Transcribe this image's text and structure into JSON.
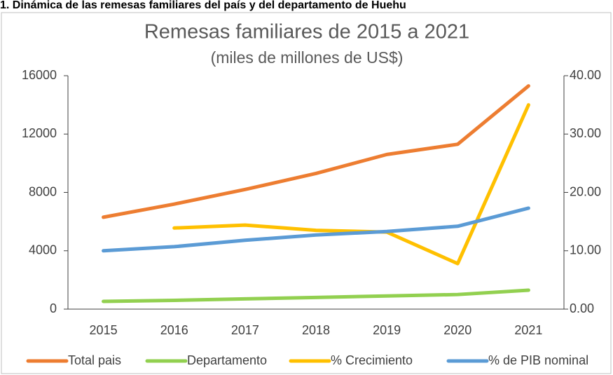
{
  "header": "1. Dinámica de las remesas familiares del país y del departamento de Huehu",
  "chart_data": {
    "type": "line",
    "title": "Remesas familiares de 2015 a 2021",
    "subtitle": "(miles de millones de US$)",
    "categories": [
      "2015",
      "2016",
      "2017",
      "2018",
      "2019",
      "2020",
      "2021"
    ],
    "series": [
      {
        "name": "Total pais",
        "color": "#ed7d31",
        "values": [
          6300,
          7200,
          8200,
          9300,
          10600,
          11300,
          15300
        ]
      },
      {
        "name": "Departamento",
        "color": "#92d050",
        "values": [
          530,
          600,
          700,
          800,
          900,
          1000,
          1300
        ]
      },
      {
        "name": "% Crecimiento",
        "color": "#ffc000",
        "axis": "y2",
        "values": [
          null,
          13.9,
          14.4,
          13.5,
          13.2,
          7.8,
          35.0
        ]
      },
      {
        "name": "% de PIB nominal",
        "color": "#5b9bd5",
        "axis": "y2",
        "values": [
          10.0,
          10.7,
          11.8,
          12.7,
          13.3,
          14.2,
          17.3
        ]
      }
    ],
    "ylim": [
      0,
      16000
    ],
    "yticks": [
      0,
      4000,
      8000,
      12000,
      16000
    ],
    "y2lim": [
      0,
      40
    ],
    "y2ticks": [
      {
        "value": 0,
        "label": "0.00"
      },
      {
        "value": 10,
        "label": "10.00"
      },
      {
        "value": 20,
        "label": "20.00"
      },
      {
        "value": 30,
        "label": "30.00"
      },
      {
        "value": 40,
        "label": "40.00"
      }
    ],
    "legend": "bottom",
    "grid": false
  }
}
